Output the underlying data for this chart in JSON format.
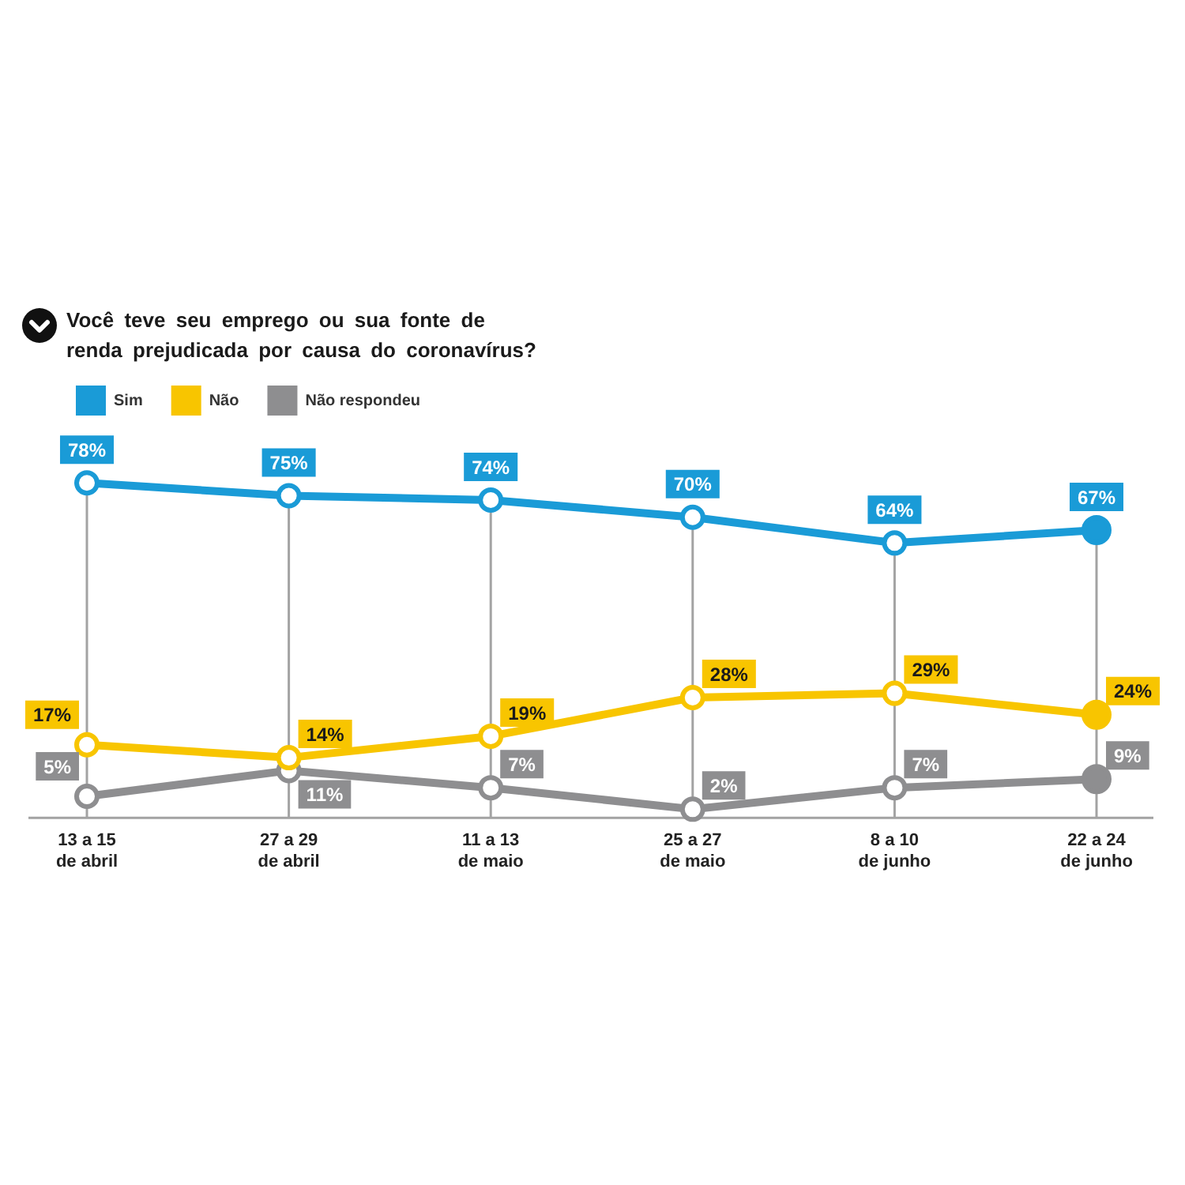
{
  "chart_data": {
    "type": "line",
    "title": "Você teve seu emprego ou sua fonte de renda prejudicada por causa do coronavírus?",
    "categories": [
      "13 a 15\nde abril",
      "27 a 29\nde abril",
      "11 a 13\nde maio",
      "25 a 27\nde maio",
      "8 a 10\nde junho",
      "22 a 24\nde junho"
    ],
    "series": [
      {
        "name": "Sim",
        "color": "#1a9bd7",
        "values": [
          78,
          75,
          74,
          70,
          64,
          67
        ],
        "value_labels": [
          "78%",
          "75%",
          "74%",
          "70%",
          "64%",
          "67%"
        ]
      },
      {
        "name": "Não",
        "color": "#f8c500",
        "values": [
          17,
          14,
          19,
          28,
          29,
          24
        ],
        "value_labels": [
          "17%",
          "14%",
          "19%",
          "28%",
          "29%",
          "24%"
        ]
      },
      {
        "name": "Não respondeu",
        "color": "#8e8e90",
        "values": [
          5,
          11,
          7,
          2,
          7,
          9
        ],
        "value_labels": [
          "5%",
          "11%",
          "7%",
          "2%",
          "7%",
          "9%"
        ]
      }
    ],
    "legend": "top left",
    "grid": "x",
    "marker": "circle",
    "line_style": "solid",
    "tick_labels": "x"
  }
}
